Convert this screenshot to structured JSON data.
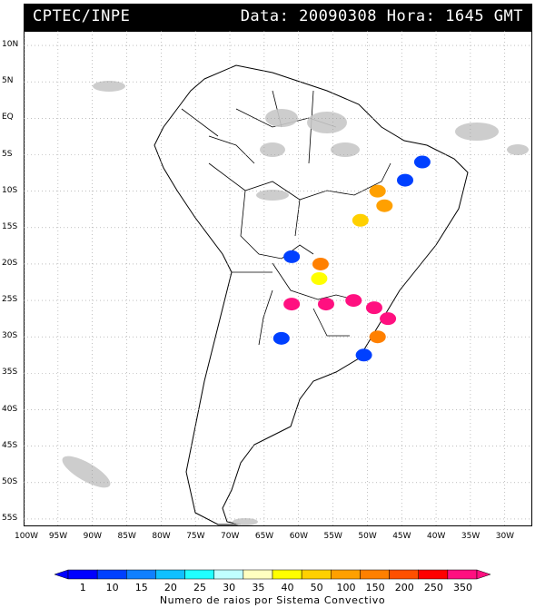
{
  "header": {
    "left": "CPTEC/INPE",
    "right": "Data: 20090308 Hora: 1645 GMT"
  },
  "axes": {
    "lat_ticks": [
      "10N",
      "5N",
      "EQ",
      "5S",
      "10S",
      "15S",
      "20S",
      "25S",
      "30S",
      "35S",
      "40S",
      "45S",
      "50S",
      "55S"
    ],
    "lat_values": [
      10,
      5,
      0,
      -5,
      -10,
      -15,
      -20,
      -25,
      -30,
      -35,
      -40,
      -45,
      -50,
      -55
    ],
    "lon_ticks": [
      "100W",
      "95W",
      "90W",
      "85W",
      "80W",
      "75W",
      "70W",
      "65W",
      "60W",
      "55W",
      "50W",
      "45W",
      "40W",
      "35W",
      "30W"
    ],
    "lon_values": [
      -100,
      -95,
      -90,
      -85,
      -80,
      -75,
      -70,
      -65,
      -60,
      -55,
      -50,
      -45,
      -40,
      -35,
      -30
    ],
    "lat_range": [
      -56,
      12
    ],
    "lon_range": [
      -100,
      -26
    ]
  },
  "legend": {
    "title": "Numero de raios por Sistema Convectivo",
    "labels": [
      "1",
      "10",
      "15",
      "20",
      "25",
      "30",
      "35",
      "40",
      "50",
      "100",
      "150",
      "200",
      "250",
      "350"
    ],
    "colors": [
      "#0000ff",
      "#0040ff",
      "#1080ff",
      "#10c0ff",
      "#20ffff",
      "#c0ffff",
      "#ffffc0",
      "#ffff00",
      "#ffd000",
      "#ffa000",
      "#ff8000",
      "#ff5000",
      "#ff0000",
      "#ff1080"
    ]
  },
  "systems": [
    {
      "lon": -62.5,
      "lat": -30.2,
      "color": "#0040ff"
    },
    {
      "lon": -61.0,
      "lat": -19.0,
      "color": "#0040ff"
    },
    {
      "lon": -56.8,
      "lat": -20.0,
      "color": "#ff8000"
    },
    {
      "lon": -57.0,
      "lat": -22.0,
      "color": "#ffff00"
    },
    {
      "lon": -61.0,
      "lat": -25.5,
      "color": "#ff1080"
    },
    {
      "lon": -56.0,
      "lat": -25.5,
      "color": "#ff1080"
    },
    {
      "lon": -52.0,
      "lat": -25.0,
      "color": "#ff1080"
    },
    {
      "lon": -49.0,
      "lat": -26.0,
      "color": "#ff1080"
    },
    {
      "lon": -47.0,
      "lat": -27.5,
      "color": "#ff1080"
    },
    {
      "lon": -48.5,
      "lat": -30.0,
      "color": "#ff8000"
    },
    {
      "lon": -50.5,
      "lat": -32.5,
      "color": "#0040ff"
    },
    {
      "lon": -48.5,
      "lat": -10.0,
      "color": "#ffa000"
    },
    {
      "lon": -51.0,
      "lat": -14.0,
      "color": "#ffd000"
    },
    {
      "lon": -47.5,
      "lat": -12.0,
      "color": "#ffa000"
    },
    {
      "lon": -44.5,
      "lat": -8.5,
      "color": "#0040ff"
    },
    {
      "lon": -42.0,
      "lat": -6.0,
      "color": "#0040ff"
    }
  ]
}
